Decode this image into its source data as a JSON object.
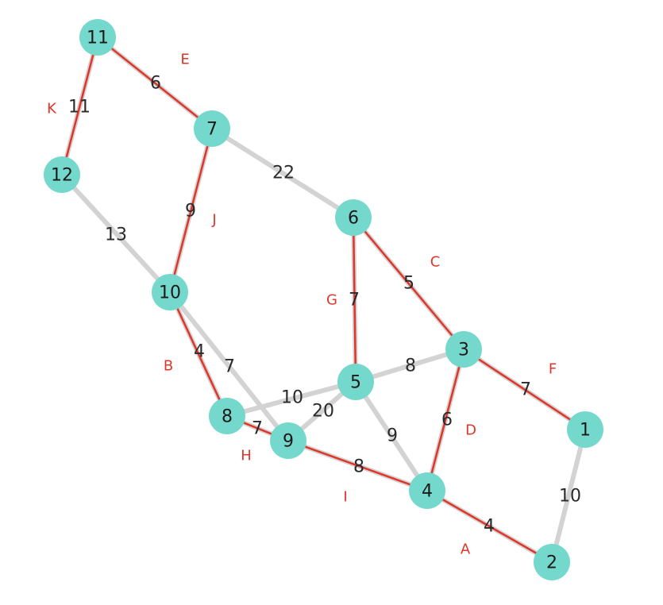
{
  "graph": {
    "nodes": [
      "1",
      "2",
      "3",
      "4",
      "5",
      "6",
      "7",
      "8",
      "9",
      "10",
      "11",
      "12"
    ],
    "edges": [
      {
        "from": "11",
        "to": "7",
        "weight": "6",
        "tree": true,
        "step": "E"
      },
      {
        "from": "11",
        "to": "12",
        "weight": "11",
        "tree": true,
        "step": "K"
      },
      {
        "from": "7",
        "to": "6",
        "weight": "22",
        "tree": false,
        "step": ""
      },
      {
        "from": "7",
        "to": "10",
        "weight": "9",
        "tree": true,
        "step": "J"
      },
      {
        "from": "12",
        "to": "10",
        "weight": "13",
        "tree": false,
        "step": ""
      },
      {
        "from": "6",
        "to": "3",
        "weight": "5",
        "tree": true,
        "step": "C"
      },
      {
        "from": "6",
        "to": "5",
        "weight": "7",
        "tree": true,
        "step": "G"
      },
      {
        "from": "10",
        "to": "8",
        "weight": "4",
        "tree": true,
        "step": "B"
      },
      {
        "from": "10",
        "to": "9",
        "weight": "7",
        "tree": false,
        "step": ""
      },
      {
        "from": "5",
        "to": "3",
        "weight": "8",
        "tree": false,
        "step": ""
      },
      {
        "from": "5",
        "to": "8",
        "weight": "10",
        "tree": false,
        "step": ""
      },
      {
        "from": "5",
        "to": "9",
        "weight": "20",
        "tree": false,
        "step": ""
      },
      {
        "from": "5",
        "to": "4",
        "weight": "9",
        "tree": false,
        "step": ""
      },
      {
        "from": "3",
        "to": "1",
        "weight": "7",
        "tree": true,
        "step": "F"
      },
      {
        "from": "3",
        "to": "4",
        "weight": "6",
        "tree": true,
        "step": "D"
      },
      {
        "from": "8",
        "to": "9",
        "weight": "7",
        "tree": true,
        "step": "H"
      },
      {
        "from": "9",
        "to": "4",
        "weight": "8",
        "tree": true,
        "step": "I"
      },
      {
        "from": "4",
        "to": "2",
        "weight": "4",
        "tree": true,
        "step": "A"
      },
      {
        "from": "1",
        "to": "2",
        "weight": "10",
        "tree": false,
        "step": ""
      }
    ]
  },
  "colors": {
    "node_fill": "#74d9cc",
    "base_edge": "#d3d3d3",
    "tree_edge": "#e0362a",
    "step_label": "#e0362a"
  }
}
